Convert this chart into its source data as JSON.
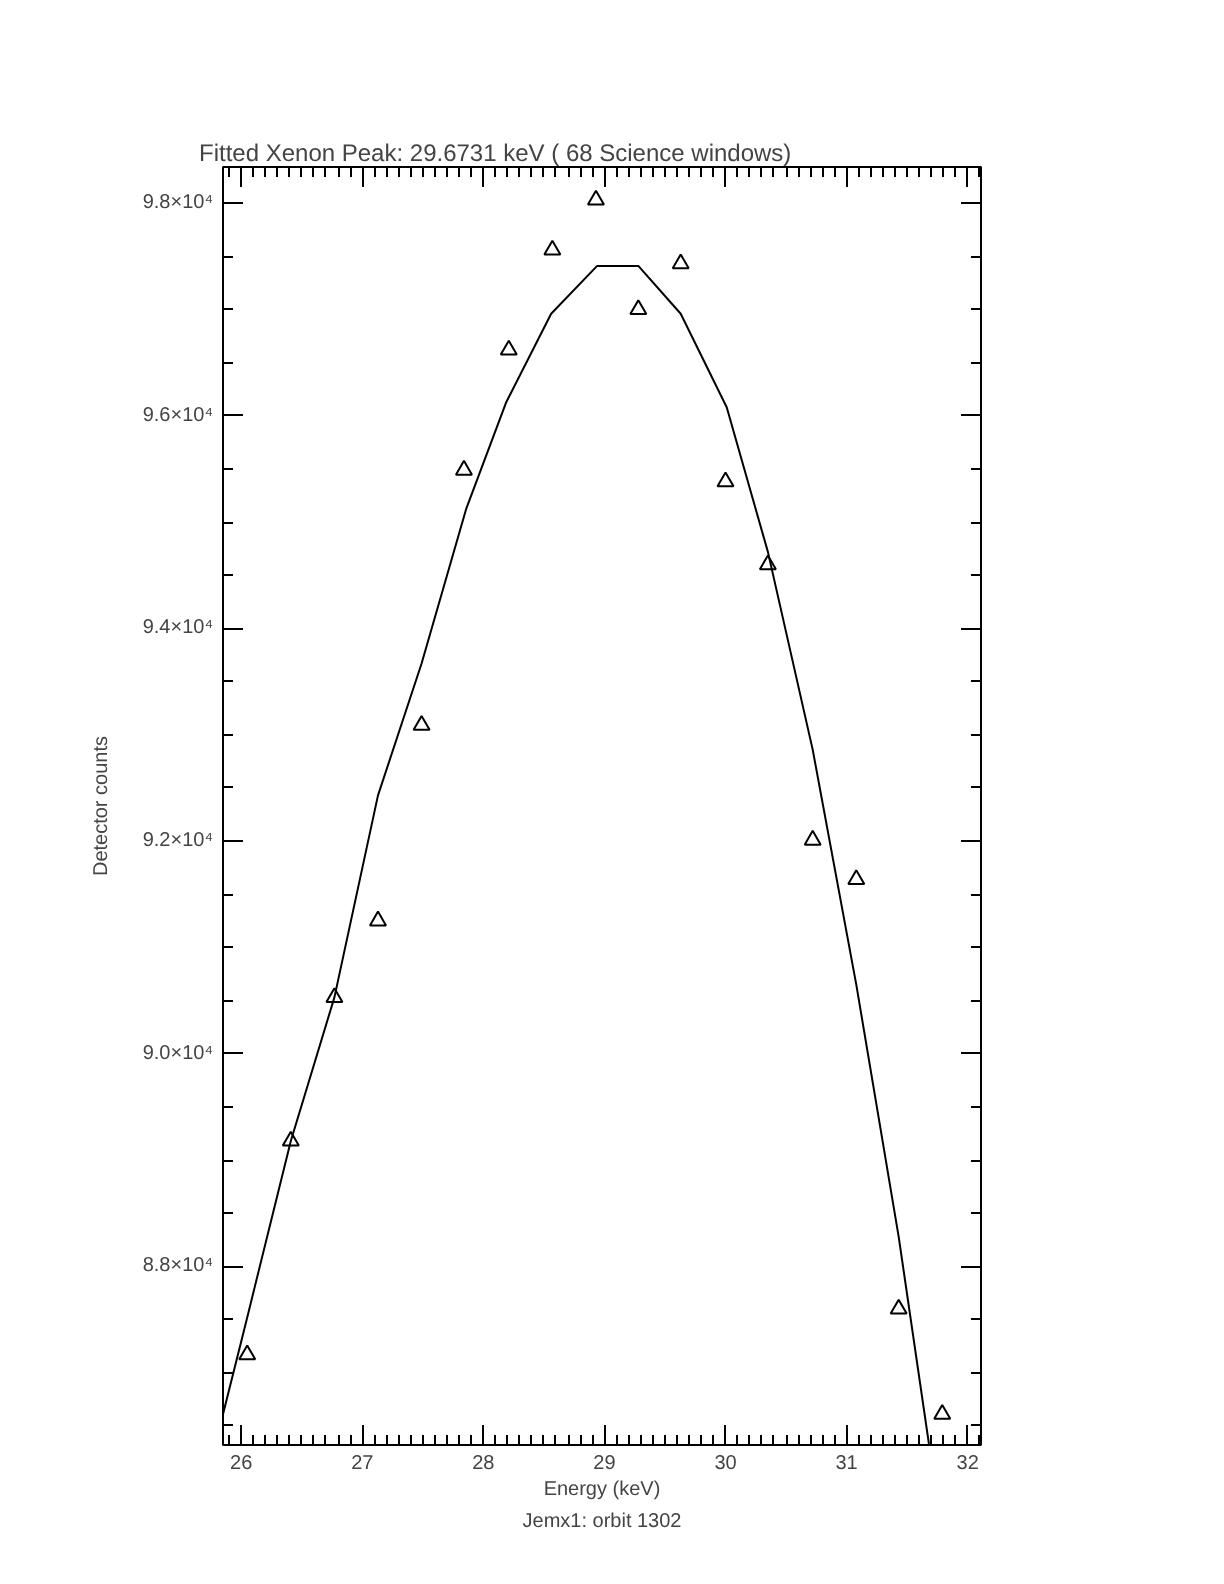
{
  "chart_data": {
    "type": "scatter",
    "title": "Fitted Xenon Peak:       29.6731 keV (      68 Science windows)",
    "xlabel": "Energy (keV)",
    "ylabel": "Detector counts",
    "annotations": [
      "Jemx1: orbit 1302"
    ],
    "series": [
      {
        "color": "#000000",
        "marker": "triangle",
        "x": [
          26.05,
          26.41,
          26.77,
          27.13,
          27.49,
          27.84,
          28.21,
          28.57,
          28.93,
          29.28,
          29.63,
          30.0,
          30.35,
          30.72,
          31.08,
          31.43,
          31.79
        ],
        "values": [
          87170,
          89180,
          90530,
          91250,
          93090,
          95490,
          96620,
          97560,
          98030,
          97000,
          97430,
          95380,
          94600,
          92010,
          91640,
          87600,
          86610
        ]
      },
      {
        "type": "line",
        "color": "#000000",
        "x": [
          25.85,
          26.05,
          26.41,
          26.77,
          27.13,
          27.49,
          27.86,
          28.19,
          28.56,
          28.94,
          29.28,
          29.63,
          30.01,
          30.35,
          30.72,
          31.08,
          31.43,
          31.68
        ],
        "values": [
          86610,
          87520,
          89180,
          90530,
          92430,
          93670,
          95130,
          96130,
          96960,
          97410,
          97410,
          96960,
          96080,
          94720,
          92860,
          90650,
          88280,
          86330
        ]
      }
    ],
    "xlim": [
      25.85,
      32.11
    ],
    "ylim": [
      86320,
      98340
    ],
    "xticks": [
      {
        "value": 25.9,
        "label": null
      },
      26,
      {
        "value": 26.1,
        "label": null
      },
      {
        "value": 26.2,
        "label": null
      },
      {
        "value": 26.3,
        "label": null
      },
      {
        "value": 26.4,
        "label": null
      },
      {
        "value": 26.5,
        "label": null
      },
      {
        "value": 26.6,
        "label": null
      },
      {
        "value": 26.7,
        "label": null
      },
      {
        "value": 26.8,
        "label": null
      },
      {
        "value": 26.9,
        "label": null
      },
      27,
      {
        "value": 27.1,
        "label": null
      },
      {
        "value": 27.2,
        "label": null
      },
      {
        "value": 27.3,
        "label": null
      },
      {
        "value": 27.4,
        "label": null
      },
      {
        "value": 27.5,
        "label": null
      },
      {
        "value": 27.6,
        "label": null
      },
      {
        "value": 27.7,
        "label": null
      },
      {
        "value": 27.8,
        "label": null
      },
      {
        "value": 27.9,
        "label": null
      },
      28,
      {
        "value": 28.1,
        "label": null
      },
      {
        "value": 28.2,
        "label": null
      },
      {
        "value": 28.3,
        "label": null
      },
      {
        "value": 28.4,
        "label": null
      },
      {
        "value": 28.5,
        "label": null
      },
      {
        "value": 28.6,
        "label": null
      },
      {
        "value": 28.7,
        "label": null
      },
      {
        "value": 28.8,
        "label": null
      },
      {
        "value": 28.9,
        "label": null
      },
      29,
      {
        "value": 29.1,
        "label": null
      },
      {
        "value": 29.2,
        "label": null
      },
      {
        "value": 29.3,
        "label": null
      },
      {
        "value": 29.4,
        "label": null
      },
      {
        "value": 29.5,
        "label": null
      },
      {
        "value": 29.6,
        "label": null
      },
      {
        "value": 29.7,
        "label": null
      },
      {
        "value": 29.8,
        "label": null
      },
      {
        "value": 29.9,
        "label": null
      },
      30,
      {
        "value": 30.1,
        "label": null
      },
      {
        "value": 30.2,
        "label": null
      },
      {
        "value": 30.3,
        "label": null
      },
      {
        "value": 30.4,
        "label": null
      },
      {
        "value": 30.5,
        "label": null
      },
      {
        "value": 30.6,
        "label": null
      },
      {
        "value": 30.7,
        "label": null
      },
      {
        "value": 30.8,
        "label": null
      },
      {
        "value": 30.9,
        "label": null
      },
      31,
      {
        "value": 31.1,
        "label": null
      },
      {
        "value": 31.2,
        "label": null
      },
      {
        "value": 31.3,
        "label": null
      },
      {
        "value": 31.4,
        "label": null
      },
      {
        "value": 31.5,
        "label": null
      },
      {
        "value": 31.6,
        "label": null
      },
      {
        "value": 31.7,
        "label": null
      },
      {
        "value": 31.8,
        "label": null
      },
      {
        "value": 31.9,
        "label": null
      },
      32,
      {
        "value": 32.1,
        "label": null
      }
    ],
    "yticks": [
      {
        "value": 86500,
        "label": null
      },
      {
        "value": 87000,
        "label": null
      },
      {
        "value": 87500,
        "label": null
      },
      {
        "value": 88000,
        "label": "8.8×10⁴"
      },
      {
        "value": 88500,
        "label": null
      },
      {
        "value": 89000,
        "label": null
      },
      {
        "value": 89500,
        "label": null
      },
      {
        "value": 90000,
        "label": "9.0×10⁴"
      },
      {
        "value": 90500,
        "label": null
      },
      {
        "value": 91000,
        "label": null
      },
      {
        "value": 91500,
        "label": null
      },
      {
        "value": 92000,
        "label": "9.2×10⁴"
      },
      {
        "value": 92500,
        "label": null
      },
      {
        "value": 93000,
        "label": null
      },
      {
        "value": 93500,
        "label": null
      },
      {
        "value": 94000,
        "label": "9.4×10⁴"
      },
      {
        "value": 94500,
        "label": null
      },
      {
        "value": 95000,
        "label": null
      },
      {
        "value": 95500,
        "label": null
      },
      {
        "value": 96000,
        "label": "9.6×10⁴"
      },
      {
        "value": 96500,
        "label": null
      },
      {
        "value": 97000,
        "label": null
      },
      {
        "value": 97500,
        "label": null
      },
      {
        "value": 98000,
        "label": "9.8×10⁴"
      }
    ],
    "line_style": "solid"
  }
}
